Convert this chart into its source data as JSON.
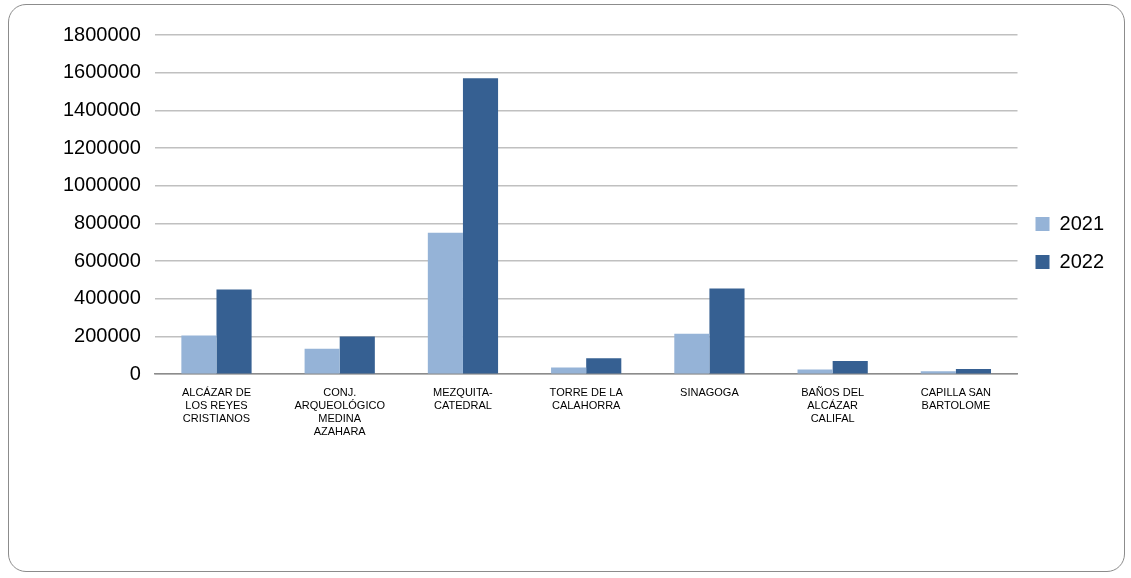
{
  "chart_data": {
    "type": "bar",
    "categories": [
      "ALCÁZAR DE LOS REYES CRISTIANOS",
      "CONJ. ARQUEOLÓGICO MEDINA AZAHARA",
      "MEZQUITA-CATEDRAL",
      "TORRE DE LA CALAHORRA",
      "SINAGOGA",
      "BAÑOS DEL ALCÁZAR CALIFAL",
      "CAPILLA SAN BARTOLOME"
    ],
    "series": [
      {
        "name": "2021",
        "color": "#95b3d7",
        "values": [
          205000,
          135000,
          750000,
          35000,
          215000,
          25000,
          15000
        ]
      },
      {
        "name": "2022",
        "color": "#366092",
        "values": [
          450000,
          200000,
          1570000,
          85000,
          455000,
          70000,
          28000
        ]
      }
    ],
    "ylim": [
      0,
      1800000
    ],
    "yticks": [
      0,
      200000,
      400000,
      600000,
      800000,
      1000000,
      1200000,
      1400000,
      1600000,
      1800000
    ],
    "grid": "y",
    "legend": "right"
  }
}
